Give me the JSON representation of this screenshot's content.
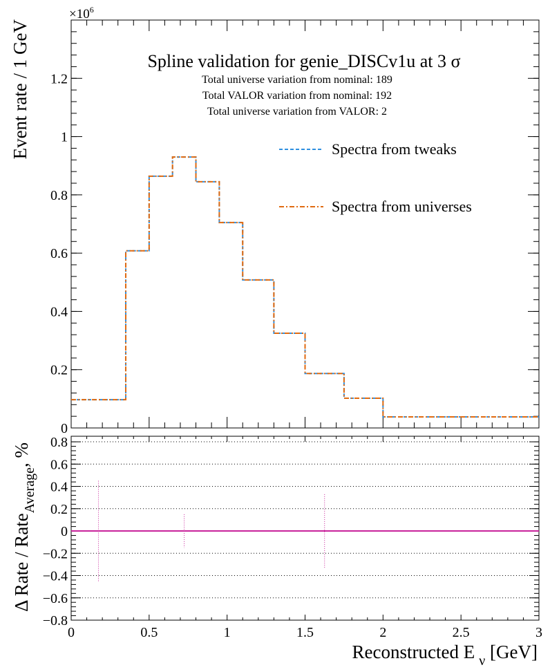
{
  "chart_data": [
    {
      "type": "line",
      "panel": "main",
      "title": "Spline validation for genie_DISCv1u at 3 σ",
      "annotations": [
        "Total universe variation from nominal: 189",
        "Total VALOR variation from nominal: 192",
        "Total universe variation from VALOR: 2"
      ],
      "ylabel": "Event rate / 1 GeV",
      "y_exponent": "×10",
      "y_exponent_power": "6",
      "xlim": [
        0,
        3
      ],
      "ylim": [
        0,
        1.4
      ],
      "y_scale": 1000000,
      "yticks": [
        0,
        0.2,
        0.4,
        0.6,
        0.8,
        1,
        1.2
      ],
      "ytick_labels": [
        "0",
        "0.2",
        "0.4",
        "0.6",
        "0.8",
        "1",
        "1.2"
      ],
      "bin_edges": [
        0,
        0.35,
        0.5,
        0.65,
        0.8,
        0.95,
        1.1,
        1.3,
        1.5,
        1.75,
        2,
        3
      ],
      "series": [
        {
          "name": "Spectra from tweaks",
          "color": "#2e8fe0",
          "style": "dashed",
          "values": [
            97000,
            608000,
            864000,
            930000,
            845000,
            705000,
            508000,
            325000,
            187000,
            102000,
            38000
          ]
        },
        {
          "name": "Spectra from universes",
          "color": "#e06a10",
          "style": "dash-dot",
          "values": [
            97000,
            608000,
            864000,
            930000,
            845000,
            705000,
            508000,
            325000,
            187000,
            102000,
            38000
          ]
        }
      ],
      "legend_position": "top-right",
      "grid": false
    },
    {
      "type": "scatter",
      "panel": "ratio",
      "ylabel_main": "Δ Rate / Rate",
      "ylabel_sub": "Average",
      "ylabel_tail": ", %",
      "xlabel_main": "Reconstructed E",
      "xlabel_sub": "ν",
      "xlabel_tail": " [GeV]",
      "xlim": [
        0,
        3
      ],
      "ylim": [
        -0.8,
        0.85
      ],
      "xticks": [
        0,
        0.5,
        1,
        1.5,
        2,
        2.5,
        3
      ],
      "xtick_labels": [
        "0",
        "0.5",
        "1",
        "1.5",
        "2",
        "2.5",
        "3"
      ],
      "yticks": [
        -0.8,
        -0.6,
        -0.4,
        -0.2,
        0,
        0.2,
        0.4,
        0.6,
        0.8
      ],
      "ytick_labels": [
        "−0.8",
        "−0.6",
        "−0.4",
        "−0.2",
        "0",
        "0.2",
        "0.4",
        "0.6",
        "0.8"
      ],
      "grid": "horizontal dotted",
      "line_color": "#c8229a",
      "points": [
        {
          "x": 0.175,
          "y": 0,
          "err": 0.45
        },
        {
          "x": 0.725,
          "y": 0,
          "err": 0.15
        },
        {
          "x": 1.625,
          "y": 0,
          "err": 0.33
        }
      ],
      "baseline": 0
    }
  ]
}
